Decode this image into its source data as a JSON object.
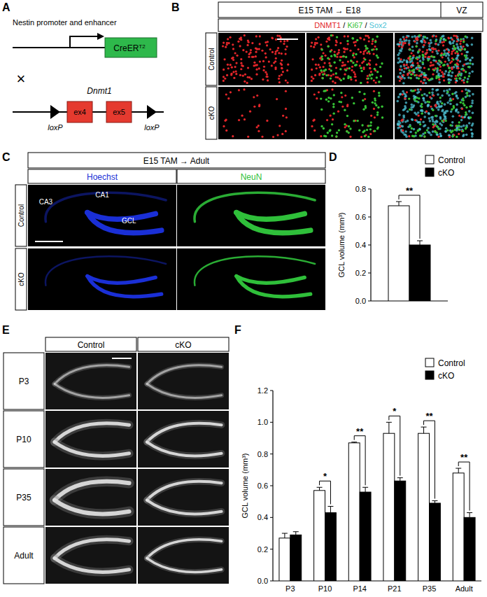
{
  "panels": {
    "A": {
      "letter": "A",
      "promoter": "Nestin promoter and enhancer",
      "cre": "CreER",
      "cre_sup": "T2",
      "cross": "×",
      "gene": "Dnmt1",
      "exons": [
        "ex4",
        "ex5"
      ],
      "loxp": [
        "loxP",
        "loxP"
      ]
    },
    "B": {
      "letter": "B",
      "condition": "E15 TAM → E18",
      "region": "VZ",
      "separator": " / ",
      "stains": [
        {
          "name": "DNMT1",
          "color": "#e3262a"
        },
        {
          "name": "Ki67",
          "color": "#35c235"
        },
        {
          "name": "Sox2",
          "color": "#4fc3d6"
        }
      ],
      "rows": [
        "Control",
        "cKO"
      ]
    },
    "C": {
      "letter": "C",
      "condition": "E15 TAM → Adult",
      "columns": [
        {
          "name": "Hoechst",
          "color": "#1a2fd6"
        },
        {
          "name": "NeuN",
          "color": "#2fbf3a"
        }
      ],
      "rows": [
        "Control",
        "cKO"
      ],
      "regions": [
        "CA1",
        "CA3",
        "GCL"
      ]
    },
    "E": {
      "letter": "E",
      "columns": [
        "Control",
        "cKO"
      ],
      "rows": [
        "P3",
        "P10",
        "P35",
        "Adult"
      ]
    }
  },
  "chart_data": [
    {
      "panel_label": "D",
      "type": "bar",
      "y_label": "GCL volume (mm³)",
      "categories": [
        null
      ],
      "series": [
        {
          "name": "Control",
          "color": "#ffffff",
          "values": [
            0.68
          ],
          "error": [
            0.03
          ]
        },
        {
          "name": "cKO",
          "color": "#000000",
          "values": [
            0.4
          ],
          "error": [
            0.03
          ]
        }
      ],
      "significance": [
        "**"
      ],
      "ylim": [
        0,
        0.8
      ],
      "yticks": [
        {
          "value": 0,
          "label": "0.0"
        },
        {
          "value": 0.2,
          "label": "0.2"
        },
        {
          "value": 0.4,
          "label": "0.4"
        },
        {
          "value": 0.6,
          "label": "0.6"
        },
        {
          "value": 0.8,
          "label": "0.8"
        }
      ],
      "grid": false,
      "legend": "top-right"
    },
    {
      "panel_label": "F",
      "type": "bar",
      "y_label": "GCL volume (mm³)",
      "categories": [
        "P3",
        "P10",
        "P14",
        "P21",
        "P35",
        "Adult"
      ],
      "series": [
        {
          "name": "Control",
          "color": "#ffffff",
          "values": [
            0.27,
            0.57,
            0.87,
            0.93,
            0.93,
            0.68
          ],
          "error": [
            0.03,
            0.02,
            0.005,
            0.07,
            0.04,
            0.03
          ]
        },
        {
          "name": "cKO",
          "color": "#000000",
          "values": [
            0.29,
            0.43,
            0.56,
            0.63,
            0.49,
            0.4
          ],
          "error": [
            0.02,
            0.04,
            0.03,
            0.02,
            0.015,
            0.03
          ]
        }
      ],
      "significance": [
        null,
        "*",
        "**",
        "*",
        "**",
        "**"
      ],
      "ylim": [
        0,
        1.2
      ],
      "yticks": [
        {
          "value": 0,
          "label": "0.0"
        },
        {
          "value": 0.2,
          "label": "0.2"
        },
        {
          "value": 0.4,
          "label": "0.4"
        },
        {
          "value": 0.6,
          "label": "0.6"
        },
        {
          "value": 0.8,
          "label": "0.8"
        },
        {
          "value": 1.0,
          "label": "1.0"
        },
        {
          "value": 1.2,
          "label": "1.2"
        }
      ],
      "grid": false,
      "legend": "top-right"
    }
  ]
}
